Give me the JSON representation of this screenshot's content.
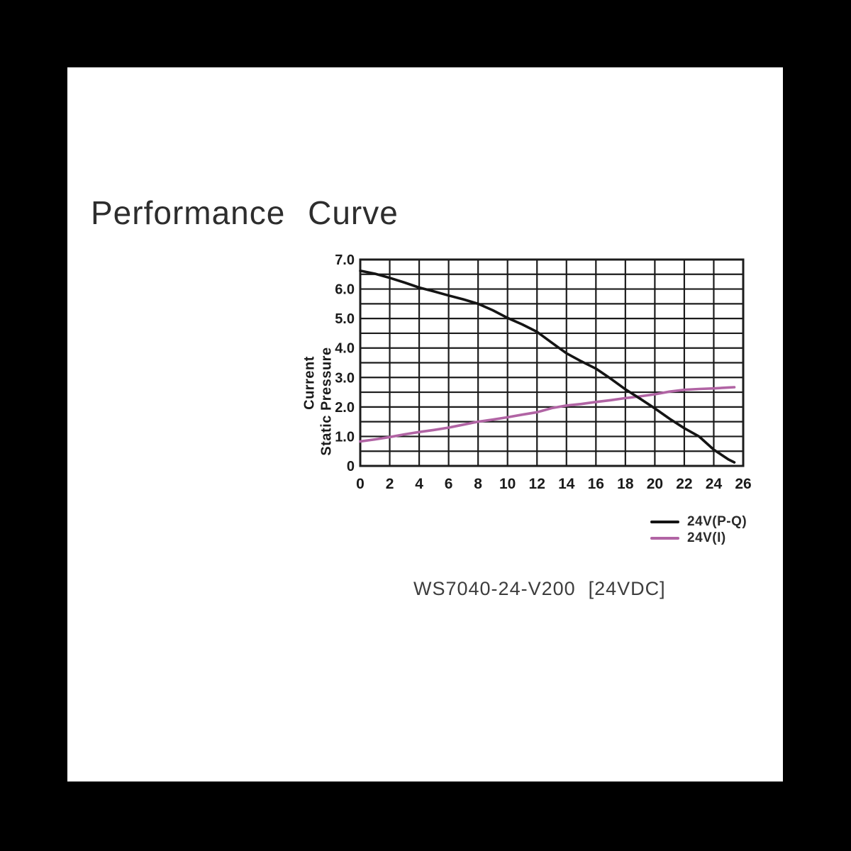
{
  "page": {
    "background": "#000000",
    "panel_background": "#ffffff",
    "title": "Performance Curve",
    "caption_model": "WS7040-24-V200",
    "caption_voltage": "[24VDC]"
  },
  "legend": [
    {
      "label": "24V(P-Q)",
      "color": "#141414"
    },
    {
      "label": "24V(I)",
      "color": "#b164a4"
    }
  ],
  "chart_data": {
    "type": "line",
    "title": "Performance Curve",
    "xlabel": "",
    "ylabel_lines": [
      "Current",
      "Static Pressure"
    ],
    "xlim": [
      0,
      26
    ],
    "ylim": [
      0,
      7
    ],
    "x_grid_step": 2,
    "y_grid_step": 0.5,
    "grid": true,
    "grid_color": "#1c1c1c",
    "tick_color": "#1a1a1a",
    "legend_position": "below-right",
    "x_ticks": [
      0,
      2,
      4,
      6,
      8,
      10,
      12,
      14,
      16,
      18,
      20,
      22,
      24,
      26
    ],
    "y_ticks": [
      {
        "label": "7.0",
        "value": 7
      },
      {
        "label": "6.0",
        "value": 6
      },
      {
        "label": "5.0",
        "value": 5
      },
      {
        "label": "4.0",
        "value": 4
      },
      {
        "label": "3.0",
        "value": 3
      },
      {
        "label": "2.0",
        "value": 2
      },
      {
        "label": "1.0",
        "value": 1
      },
      {
        "label": "0",
        "value": 0
      }
    ],
    "series": [
      {
        "name": "24V(P-Q)",
        "color": "#141414",
        "points": [
          [
            0,
            6.62
          ],
          [
            1,
            6.52
          ],
          [
            2,
            6.38
          ],
          [
            3,
            6.22
          ],
          [
            4,
            6.05
          ],
          [
            5,
            5.92
          ],
          [
            6,
            5.78
          ],
          [
            7,
            5.65
          ],
          [
            8,
            5.5
          ],
          [
            9,
            5.28
          ],
          [
            10,
            5.02
          ],
          [
            11,
            4.8
          ],
          [
            12,
            4.55
          ],
          [
            13,
            4.18
          ],
          [
            14,
            3.82
          ],
          [
            15,
            3.55
          ],
          [
            16,
            3.3
          ],
          [
            17,
            2.96
          ],
          [
            18,
            2.6
          ],
          [
            19,
            2.28
          ],
          [
            20,
            1.95
          ],
          [
            21,
            1.6
          ],
          [
            22,
            1.28
          ],
          [
            23,
            1.0
          ],
          [
            24,
            0.55
          ],
          [
            25,
            0.22
          ],
          [
            25.4,
            0.12
          ]
        ]
      },
      {
        "name": "24V(I)",
        "color": "#b164a4",
        "points": [
          [
            0,
            0.83
          ],
          [
            1,
            0.9
          ],
          [
            2,
            0.98
          ],
          [
            3,
            1.07
          ],
          [
            4,
            1.15
          ],
          [
            5,
            1.22
          ],
          [
            6,
            1.3
          ],
          [
            7,
            1.4
          ],
          [
            8,
            1.5
          ],
          [
            9,
            1.57
          ],
          [
            10,
            1.65
          ],
          [
            11,
            1.74
          ],
          [
            12,
            1.82
          ],
          [
            13,
            1.96
          ],
          [
            14,
            2.05
          ],
          [
            15,
            2.1
          ],
          [
            16,
            2.17
          ],
          [
            17,
            2.23
          ],
          [
            18,
            2.3
          ],
          [
            19,
            2.36
          ],
          [
            20,
            2.43
          ],
          [
            21,
            2.52
          ],
          [
            22,
            2.58
          ],
          [
            23,
            2.61
          ],
          [
            24,
            2.63
          ],
          [
            25,
            2.66
          ],
          [
            25.4,
            2.67
          ]
        ]
      }
    ]
  }
}
